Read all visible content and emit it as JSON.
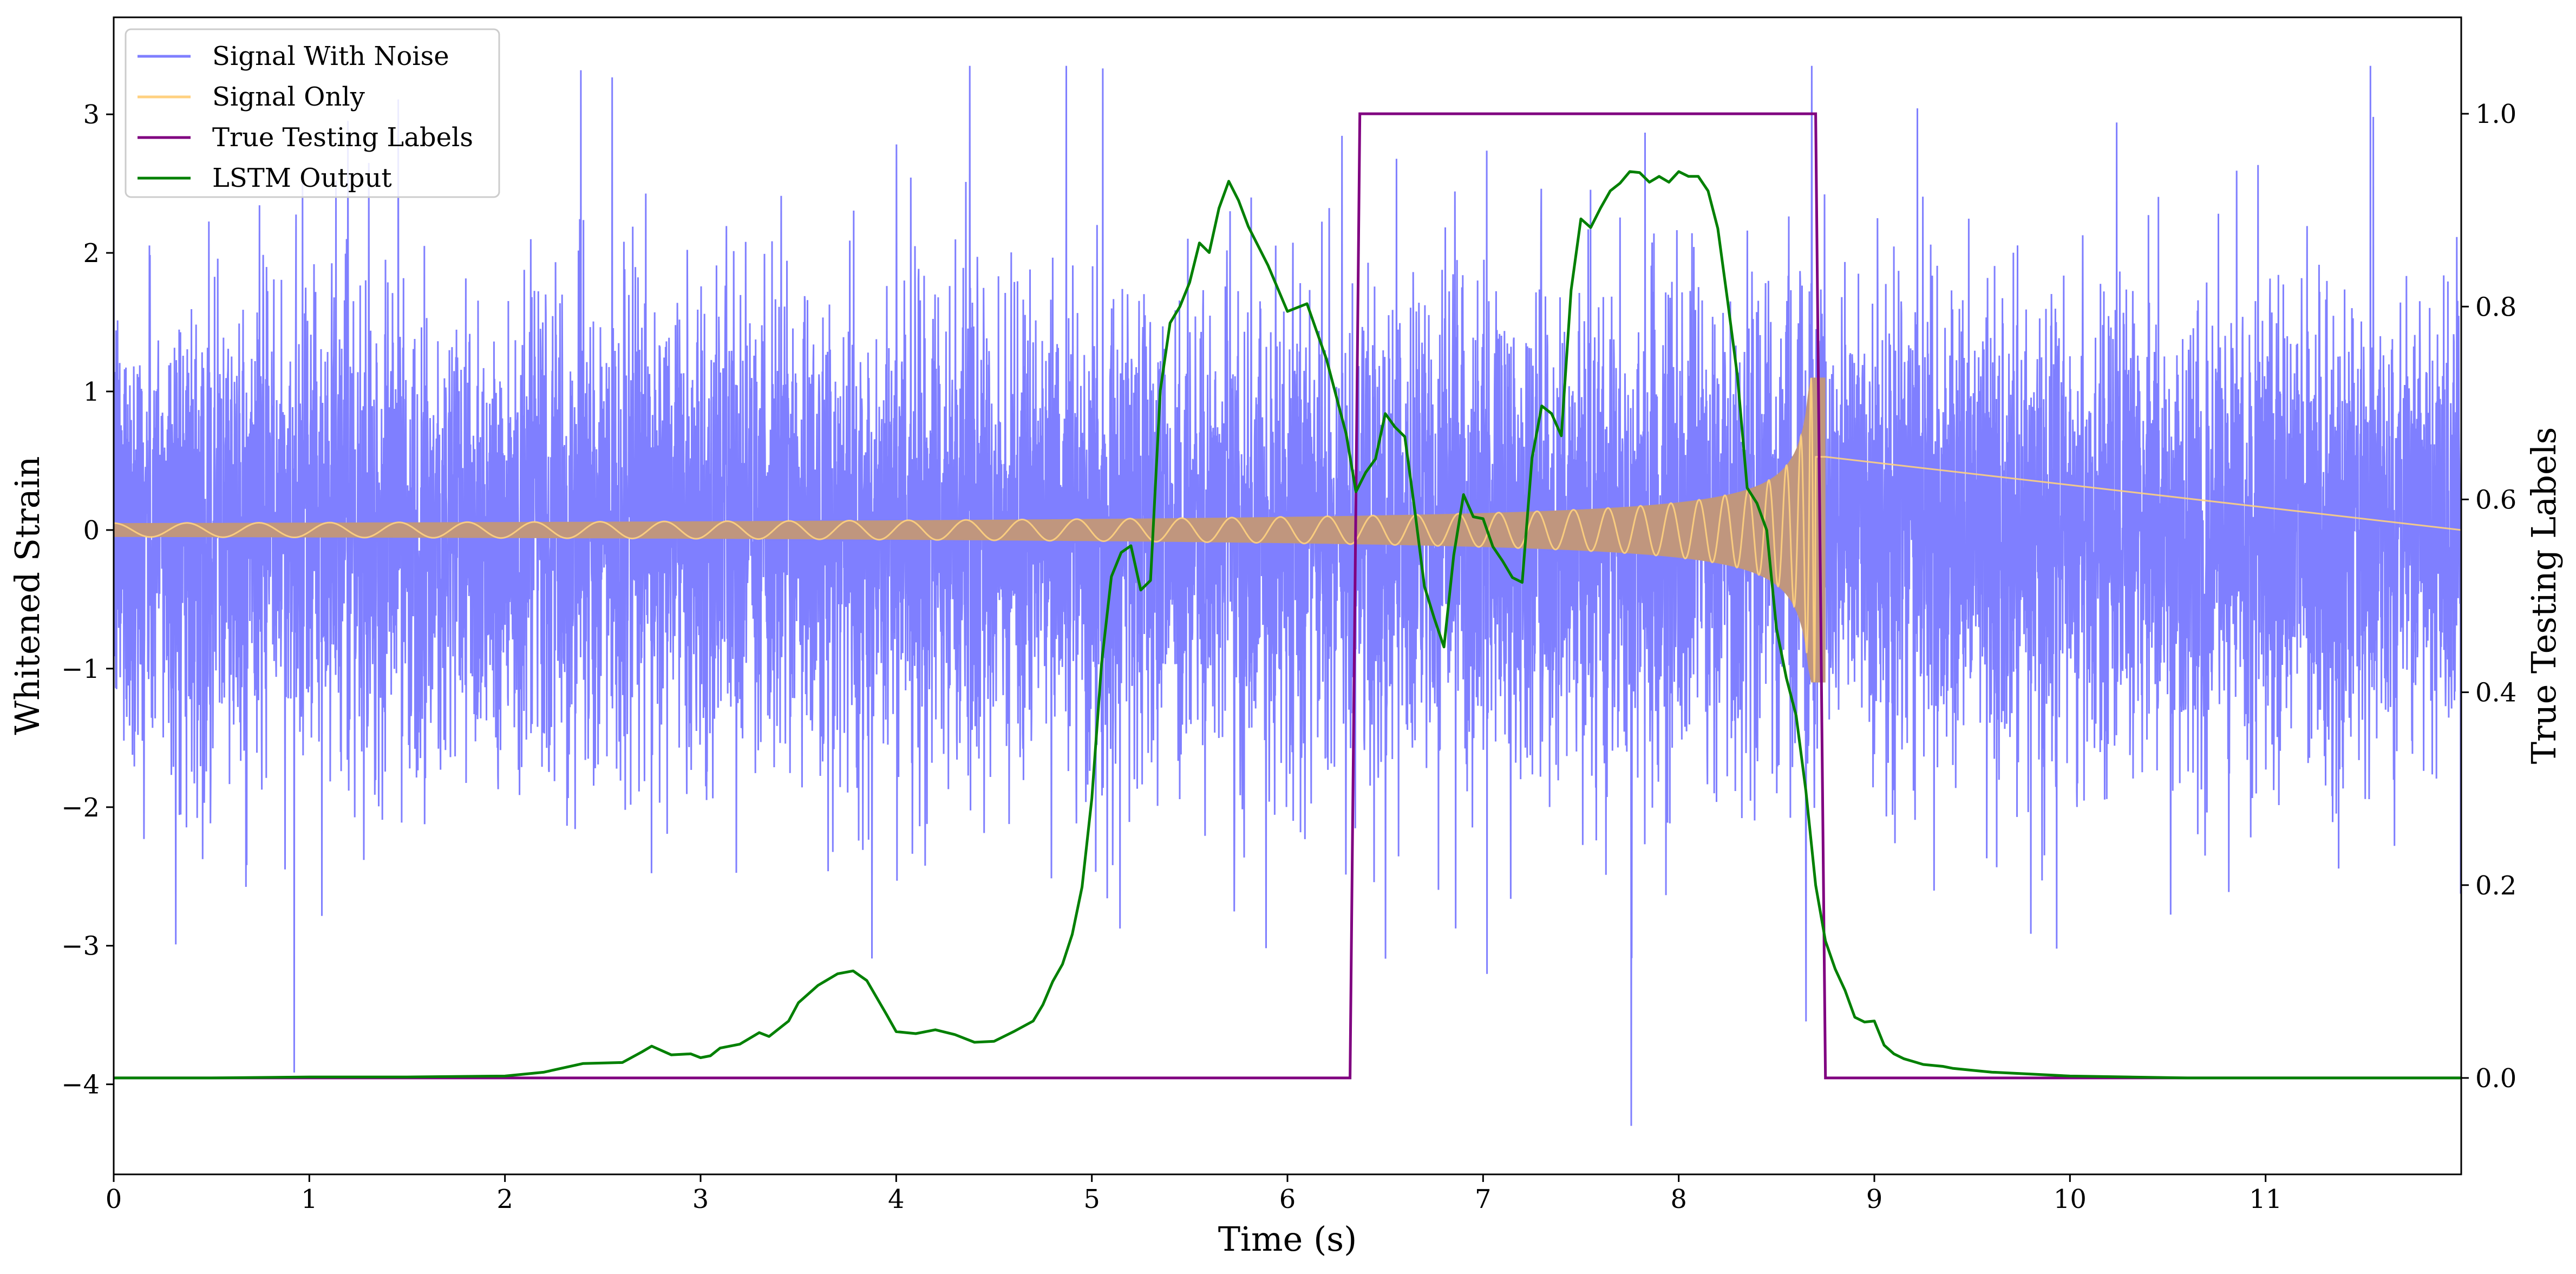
{
  "chart_data": {
    "type": "line",
    "xlabel": "Time (s)",
    "ylabel": "Whitened Strain",
    "y2label": "True Testing Labels",
    "xlim": [
      0,
      12
    ],
    "ylim": [
      -4.65,
      3.7
    ],
    "y2lim": [
      -0.1,
      1.1
    ],
    "x_ticks": [
      "0",
      "1",
      "2",
      "3",
      "4",
      "5",
      "6",
      "7",
      "8",
      "9",
      "10",
      "11"
    ],
    "y_ticks": [
      "−4",
      "−3",
      "−2",
      "−1",
      "0",
      "1",
      "2",
      "3"
    ],
    "y2_ticks": [
      "0.0",
      "0.2",
      "0.4",
      "0.6",
      "0.8",
      "1.0"
    ],
    "legend_position": "upper-left",
    "grid": false,
    "series": [
      {
        "name": "Signal With Noise",
        "axis": "left",
        "color": "#7f7fff",
        "kind": "noise",
        "typical_std": 0.85,
        "approx_range": [
          -4.3,
          3.35
        ]
      },
      {
        "name": "Signal Only",
        "axis": "left",
        "color": "#ffd180",
        "overlap_color": "#c0967e",
        "kind": "chirp",
        "start_amplitude": 0.05,
        "peak_amplitude": 1.1,
        "merger_time": 8.7,
        "end_time": 8.75
      },
      {
        "name": "True Testing Labels",
        "axis": "right",
        "color": "#800080",
        "x": [
          0,
          6.32,
          6.37,
          8.7,
          8.75,
          12
        ],
        "y": [
          0,
          0,
          1,
          1,
          0,
          0
        ]
      },
      {
        "name": "LSTM Output",
        "axis": "right",
        "color": "#008000",
        "x": [
          0,
          0.5,
          1.0,
          1.5,
          2.0,
          2.2,
          2.4,
          2.6,
          2.7,
          2.75,
          2.85,
          2.95,
          3.0,
          3.05,
          3.1,
          3.2,
          3.3,
          3.35,
          3.45,
          3.5,
          3.6,
          3.7,
          3.78,
          3.85,
          3.95,
          4.0,
          4.1,
          4.2,
          4.3,
          4.4,
          4.5,
          4.6,
          4.7,
          4.75,
          4.8,
          4.85,
          4.9,
          4.95,
          5.0,
          5.05,
          5.1,
          5.15,
          5.2,
          5.25,
          5.3,
          5.35,
          5.4,
          5.45,
          5.5,
          5.55,
          5.6,
          5.65,
          5.7,
          5.75,
          5.8,
          5.9,
          6.0,
          6.1,
          6.2,
          6.3,
          6.35,
          6.4,
          6.45,
          6.5,
          6.55,
          6.6,
          6.65,
          6.7,
          6.75,
          6.8,
          6.85,
          6.9,
          6.95,
          7.0,
          7.05,
          7.1,
          7.15,
          7.2,
          7.25,
          7.3,
          7.35,
          7.4,
          7.45,
          7.5,
          7.55,
          7.6,
          7.65,
          7.7,
          7.75,
          7.8,
          7.85,
          7.9,
          7.95,
          8.0,
          8.05,
          8.1,
          8.15,
          8.2,
          8.25,
          8.3,
          8.35,
          8.4,
          8.45,
          8.5,
          8.55,
          8.6,
          8.65,
          8.7,
          8.75,
          8.8,
          8.85,
          8.9,
          8.95,
          9.0,
          9.05,
          9.1,
          9.15,
          9.2,
          9.25,
          9.3,
          9.35,
          9.4,
          9.5,
          9.6,
          9.8,
          10.0,
          10.3,
          10.6,
          11.0,
          12.0
        ],
        "y": [
          0.0,
          0.0,
          0.001,
          0.001,
          0.002,
          0.006,
          0.015,
          0.016,
          0.027,
          0.033,
          0.024,
          0.025,
          0.021,
          0.023,
          0.031,
          0.035,
          0.047,
          0.043,
          0.059,
          0.078,
          0.096,
          0.108,
          0.111,
          0.101,
          0.066,
          0.048,
          0.046,
          0.05,
          0.045,
          0.037,
          0.038,
          0.048,
          0.059,
          0.076,
          0.1,
          0.118,
          0.149,
          0.198,
          0.29,
          0.43,
          0.52,
          0.545,
          0.552,
          0.506,
          0.516,
          0.713,
          0.783,
          0.8,
          0.825,
          0.866,
          0.856,
          0.902,
          0.93,
          0.91,
          0.883,
          0.843,
          0.795,
          0.803,
          0.745,
          0.668,
          0.608,
          0.628,
          0.642,
          0.689,
          0.675,
          0.665,
          0.59,
          0.51,
          0.477,
          0.447,
          0.542,
          0.605,
          0.582,
          0.58,
          0.551,
          0.536,
          0.519,
          0.514,
          0.643,
          0.697,
          0.689,
          0.666,
          0.817,
          0.891,
          0.882,
          0.902,
          0.92,
          0.928,
          0.94,
          0.939,
          0.929,
          0.935,
          0.929,
          0.94,
          0.935,
          0.935,
          0.92,
          0.881,
          0.806,
          0.728,
          0.612,
          0.596,
          0.568,
          0.466,
          0.415,
          0.376,
          0.298,
          0.2,
          0.142,
          0.113,
          0.091,
          0.063,
          0.058,
          0.059,
          0.034,
          0.025,
          0.02,
          0.017,
          0.014,
          0.013,
          0.012,
          0.01,
          0.008,
          0.006,
          0.004,
          0.002,
          0.001,
          0.0,
          0.0,
          0.0
        ]
      }
    ]
  }
}
